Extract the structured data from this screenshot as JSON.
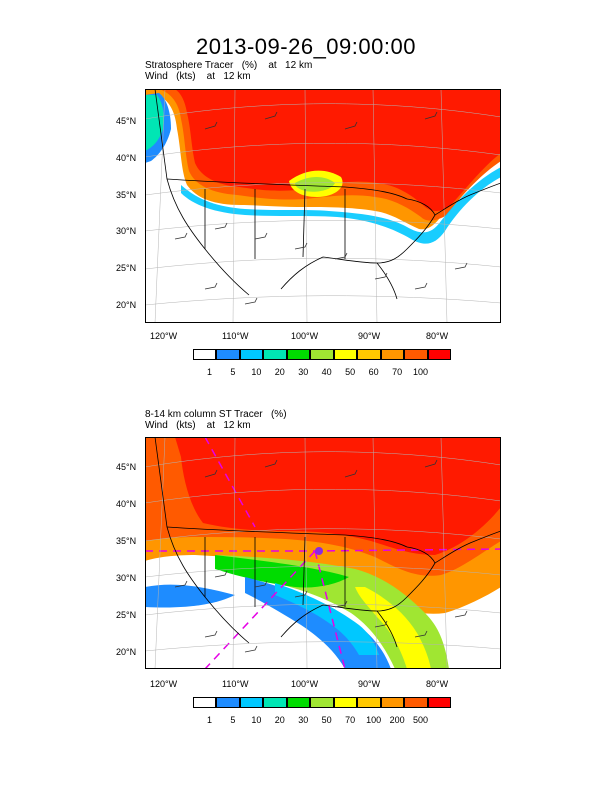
{
  "page_title": "2013-09-26_09:00:00",
  "panels": [
    {
      "subtitle_line1": "Stratosphere Tracer   (%)    at   12 km",
      "subtitle_line2": "Wind   (kts)    at   12 km",
      "lat_labels": [
        "45°N",
        "40°N",
        "35°N",
        "30°N",
        "25°N",
        "20°N"
      ],
      "lon_labels": [
        "120°W",
        "110°W",
        "100°W",
        "90°W",
        "80°W"
      ],
      "colorbar": {
        "labels": [
          "1",
          "5",
          "10",
          "20",
          "30",
          "40",
          "50",
          "60",
          "70",
          "100"
        ],
        "colors": [
          "#ffffff",
          "#1e8cff",
          "#00c8ff",
          "#00e6b4",
          "#00dc00",
          "#a0e632",
          "#ffff00",
          "#ffc800",
          "#ff9600",
          "#ff5a00",
          "#ff0000"
        ]
      }
    },
    {
      "subtitle_line1": "8-14 km column ST Tracer   (%)",
      "subtitle_line2": "Wind   (kts)    at   12 km",
      "lat_labels": [
        "45°N",
        "40°N",
        "35°N",
        "30°N",
        "25°N",
        "20°N"
      ],
      "lon_labels": [
        "120°W",
        "110°W",
        "100°W",
        "90°W",
        "80°W"
      ],
      "colorbar": {
        "labels": [
          "1",
          "5",
          "10",
          "20",
          "30",
          "50",
          "70",
          "100",
          "200",
          "500"
        ],
        "colors": [
          "#ffffff",
          "#1e8cff",
          "#00c8ff",
          "#00e6b4",
          "#00dc00",
          "#a0e632",
          "#ffff00",
          "#ffc800",
          "#ff9600",
          "#ff5a00",
          "#ff0000"
        ]
      }
    }
  ]
}
